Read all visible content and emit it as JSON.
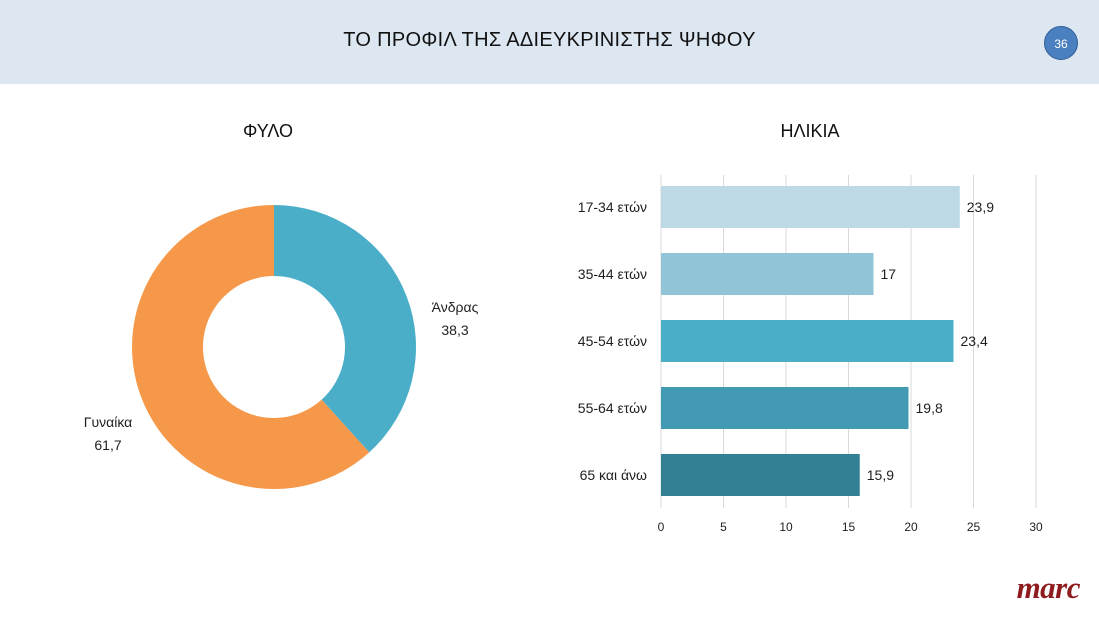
{
  "header": {
    "title": "ΤΟ ΠΡΟΦΙΛ ΤΗΣ ΑΔΙΕΥΚΡΙΝΙΣΤΗΣ ΨΗΦΟΥ",
    "page_number": "36"
  },
  "logo": {
    "text": "marc"
  },
  "colors": {
    "header_bg": "#dde7f2",
    "badge": "#4a7fc0",
    "donut_female": "#f5984a",
    "donut_male": "#4aaec8",
    "bars": [
      "#bcd9e5",
      "#92c4d8",
      "#4aaec8",
      "#4299b2",
      "#337f94"
    ],
    "logo": "#8e1c1f"
  },
  "chart_data": [
    {
      "type": "pie",
      "title": "ΦΥΛΟ",
      "donut": true,
      "slices": [
        {
          "label": "Άνδρας",
          "value": 38.3,
          "value_label": "38,3"
        },
        {
          "label": "Γυναίκα",
          "value": 61.7,
          "value_label": "61,7"
        }
      ]
    },
    {
      "type": "bar",
      "orientation": "horizontal",
      "title": "ΗΛΙΚΙΑ",
      "categories": [
        "17-34 ετών",
        "35-44 ετών",
        "45-54 ετών",
        "55-64 ετών",
        "65 και άνω"
      ],
      "values": [
        23.9,
        17,
        23.4,
        19.8,
        15.9
      ],
      "value_labels": [
        "23,9",
        "17",
        "23,4",
        "19,8",
        "15,9"
      ],
      "xlim": [
        0,
        30
      ],
      "xticks": [
        0,
        5,
        10,
        15,
        20,
        25,
        30
      ],
      "grid": true
    }
  ]
}
